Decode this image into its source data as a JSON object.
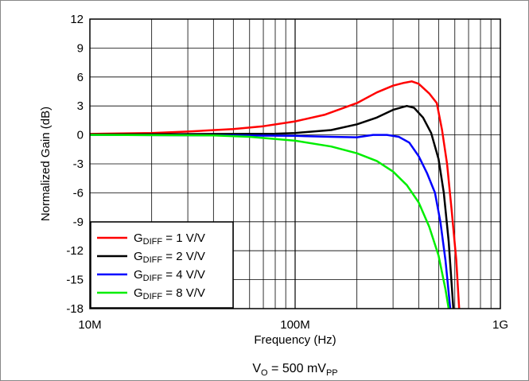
{
  "chart_data": {
    "type": "line",
    "xlabel": "Frequency (Hz)",
    "ylabel": "Normalized Gain (dB)",
    "caption": {
      "prefix": "V",
      "prefix_sub": "O",
      "middle": " = 500 mV",
      "suffix_sub": "PP"
    },
    "x_scale": "log",
    "xlim": [
      10000000,
      1000000000
    ],
    "ylim": [
      -18,
      12
    ],
    "grid": true,
    "x_ticks": [
      {
        "value": 10000000,
        "label": "10M"
      },
      {
        "value": 100000000,
        "label": "100M"
      },
      {
        "value": 1000000000,
        "label": "1G"
      }
    ],
    "y_ticks": [
      {
        "value": 12,
        "label": "12"
      },
      {
        "value": 9,
        "label": "9"
      },
      {
        "value": 6,
        "label": "6"
      },
      {
        "value": 3,
        "label": "3"
      },
      {
        "value": 0,
        "label": "0"
      },
      {
        "value": -3,
        "label": "-3"
      },
      {
        "value": -6,
        "label": "-6"
      },
      {
        "value": -9,
        "label": "-9"
      },
      {
        "value": -12,
        "label": "-12"
      },
      {
        "value": -15,
        "label": "-15"
      },
      {
        "value": -18,
        "label": "-18"
      }
    ],
    "legend_position": "bottom-left",
    "series": [
      {
        "name_main": "G",
        "name_sub": "DIFF",
        "name_rest": " = 1 V/V",
        "color": "#ff0000",
        "points": [
          [
            10000000,
            0.1
          ],
          [
            20000000,
            0.2
          ],
          [
            30000000,
            0.35
          ],
          [
            50000000,
            0.6
          ],
          [
            70000000,
            0.9
          ],
          [
            100000000,
            1.4
          ],
          [
            140000000,
            2.1
          ],
          [
            200000000,
            3.3
          ],
          [
            250000000,
            4.4
          ],
          [
            300000000,
            5.1
          ],
          [
            340000000,
            5.4
          ],
          [
            370000000,
            5.55
          ],
          [
            400000000,
            5.3
          ],
          [
            450000000,
            4.3
          ],
          [
            490000000,
            3.3
          ],
          [
            520000000,
            0.5
          ],
          [
            550000000,
            -3
          ],
          [
            580000000,
            -8
          ],
          [
            610000000,
            -13
          ],
          [
            630000000,
            -18
          ]
        ]
      },
      {
        "name_main": "G",
        "name_sub": "DIFF",
        "name_rest": " = 2 V/V",
        "color": "#000000",
        "points": [
          [
            10000000,
            0.05
          ],
          [
            50000000,
            0.1
          ],
          [
            80000000,
            0.12
          ],
          [
            100000000,
            0.2
          ],
          [
            150000000,
            0.5
          ],
          [
            200000000,
            1.1
          ],
          [
            250000000,
            1.8
          ],
          [
            300000000,
            2.6
          ],
          [
            350000000,
            3.0
          ],
          [
            380000000,
            2.8
          ],
          [
            420000000,
            1.8
          ],
          [
            460000000,
            0.2
          ],
          [
            500000000,
            -2.5
          ],
          [
            530000000,
            -6
          ],
          [
            560000000,
            -11
          ],
          [
            590000000,
            -18
          ]
        ]
      },
      {
        "name_main": "G",
        "name_sub": "DIFF",
        "name_rest": " = 4 V/V",
        "color": "#0000ff",
        "points": [
          [
            10000000,
            0
          ],
          [
            50000000,
            -0.05
          ],
          [
            100000000,
            -0.1
          ],
          [
            150000000,
            -0.2
          ],
          [
            200000000,
            -0.25
          ],
          [
            240000000,
            0
          ],
          [
            280000000,
            0
          ],
          [
            320000000,
            -0.2
          ],
          [
            360000000,
            -0.8
          ],
          [
            400000000,
            -2.2
          ],
          [
            440000000,
            -4
          ],
          [
            480000000,
            -6
          ],
          [
            510000000,
            -9
          ],
          [
            540000000,
            -13
          ],
          [
            570000000,
            -18
          ]
        ]
      },
      {
        "name_main": "G",
        "name_sub": "DIFF",
        "name_rest": " = 8 V/V",
        "color": "#00ee00",
        "points": [
          [
            10000000,
            0
          ],
          [
            40000000,
            -0.05
          ],
          [
            60000000,
            -0.2
          ],
          [
            100000000,
            -0.6
          ],
          [
            150000000,
            -1.2
          ],
          [
            200000000,
            -1.9
          ],
          [
            250000000,
            -2.7
          ],
          [
            300000000,
            -3.8
          ],
          [
            350000000,
            -5.2
          ],
          [
            400000000,
            -7
          ],
          [
            450000000,
            -9.5
          ],
          [
            500000000,
            -12.5
          ],
          [
            540000000,
            -16
          ],
          [
            560000000,
            -18
          ]
        ]
      }
    ]
  }
}
